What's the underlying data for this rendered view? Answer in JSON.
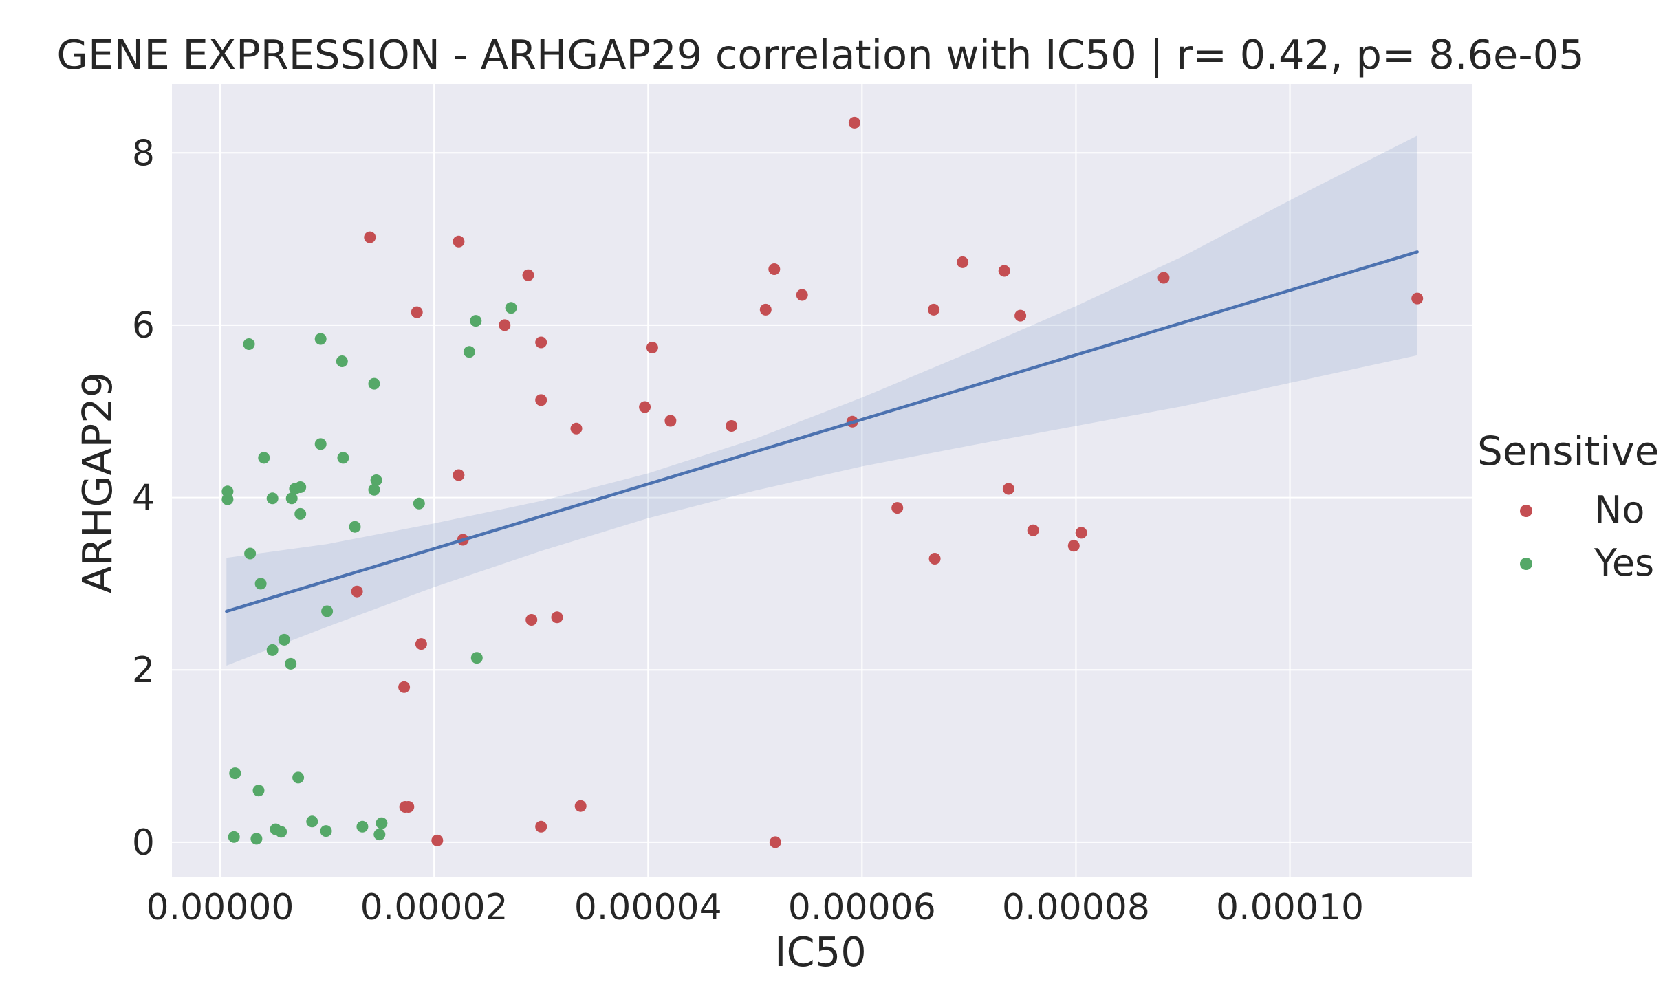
{
  "chart_data": {
    "type": "scatter",
    "title": "GENE EXPRESSION - ARHGAP29  correlation with IC50 | r= 0.42, p= 8.6e-05",
    "xlabel": "IC50",
    "ylabel": "ARHGAP29",
    "xlim": [
      -4.5e-06,
      0.000117
    ],
    "ylim": [
      -0.4,
      8.8
    ],
    "x_ticks": [
      0,
      2e-05,
      4e-05,
      6e-05,
      8e-05,
      0.0001
    ],
    "x_tick_labels": [
      "0.00000",
      "0.00002",
      "0.00004",
      "0.00006",
      "0.00008",
      "0.00010"
    ],
    "y_ticks": [
      0,
      2,
      4,
      6,
      8
    ],
    "y_tick_labels": [
      "0",
      "2",
      "4",
      "6",
      "8"
    ],
    "grid": true,
    "legend": {
      "title": "Sensitive",
      "placement": "right"
    },
    "colors": {
      "No": "#c44e52",
      "Yes": "#55a868",
      "regression": "#4c72b0",
      "band": "#4c72b0",
      "background": "#eaeaf2",
      "grid": "#ffffff"
    },
    "series": [
      {
        "name": "No",
        "points": [
          [
            5.93e-05,
            8.35
          ],
          [
            1.4e-05,
            7.02
          ],
          [
            2.23e-05,
            6.97
          ],
          [
            2.88e-05,
            6.58
          ],
          [
            5.18e-05,
            6.65
          ],
          [
            6.94e-05,
            6.73
          ],
          [
            7.33e-05,
            6.63
          ],
          [
            8.82e-05,
            6.55
          ],
          [
            0.0001119,
            6.31
          ],
          [
            5.44e-05,
            6.35
          ],
          [
            5.1e-05,
            6.18
          ],
          [
            6.67e-05,
            6.18
          ],
          [
            7.48e-05,
            6.11
          ],
          [
            1.84e-05,
            6.15
          ],
          [
            2.66e-05,
            6.0
          ],
          [
            3e-05,
            5.8
          ],
          [
            4.04e-05,
            5.74
          ],
          [
            3e-05,
            5.13
          ],
          [
            3.97e-05,
            5.05
          ],
          [
            4.21e-05,
            4.89
          ],
          [
            3.33e-05,
            4.8
          ],
          [
            4.78e-05,
            4.83
          ],
          [
            5.91e-05,
            4.88
          ],
          [
            2.23e-05,
            4.26
          ],
          [
            7.37e-05,
            4.1
          ],
          [
            6.33e-05,
            3.88
          ],
          [
            7.6e-05,
            3.62
          ],
          [
            8.05e-05,
            3.59
          ],
          [
            7.98e-05,
            3.44
          ],
          [
            2.27e-05,
            3.51
          ],
          [
            6.68e-05,
            3.29
          ],
          [
            1.28e-05,
            2.91
          ],
          [
            2.91e-05,
            2.58
          ],
          [
            3.15e-05,
            2.61
          ],
          [
            1.88e-05,
            2.3
          ],
          [
            1.72e-05,
            1.8
          ],
          [
            1.73e-05,
            0.41
          ],
          [
            1.76e-05,
            0.41
          ],
          [
            3.37e-05,
            0.42
          ],
          [
            3e-05,
            0.18
          ],
          [
            2.03e-05,
            0.02
          ],
          [
            5.19e-05,
            0.0
          ]
        ]
      },
      {
        "name": "Yes",
        "points": [
          [
            2.7e-06,
            5.78
          ],
          [
            9.4e-06,
            5.84
          ],
          [
            1.14e-05,
            5.58
          ],
          [
            1.44e-05,
            5.32
          ],
          [
            2.39e-05,
            6.05
          ],
          [
            2.72e-05,
            6.2
          ],
          [
            2.33e-05,
            5.69
          ],
          [
            4.1e-06,
            4.46
          ],
          [
            9.4e-06,
            4.62
          ],
          [
            1.15e-05,
            4.46
          ],
          [
            1.46e-05,
            4.2
          ],
          [
            1.44e-05,
            4.09
          ],
          [
            7e-07,
            4.07
          ],
          [
            7e-07,
            3.98
          ],
          [
            4.9e-06,
            3.99
          ],
          [
            6.7e-06,
            3.99
          ],
          [
            7e-06,
            4.1
          ],
          [
            7.5e-06,
            4.12
          ],
          [
            7.5e-06,
            3.81
          ],
          [
            1.86e-05,
            3.93
          ],
          [
            1.26e-05,
            3.66
          ],
          [
            2.8e-06,
            3.35
          ],
          [
            3.8e-06,
            3.0
          ],
          [
            1e-05,
            2.68
          ],
          [
            6e-06,
            2.35
          ],
          [
            4.9e-06,
            2.23
          ],
          [
            6.6e-06,
            2.07
          ],
          [
            2.4e-05,
            2.14
          ],
          [
            1.4e-06,
            0.8
          ],
          [
            7.3e-06,
            0.75
          ],
          [
            3.6e-06,
            0.6
          ],
          [
            1.3e-06,
            0.06
          ],
          [
            3.4e-06,
            0.04
          ],
          [
            5.2e-06,
            0.15
          ],
          [
            5.7e-06,
            0.12
          ],
          [
            8.6e-06,
            0.24
          ],
          [
            9.9e-06,
            0.13
          ],
          [
            1.33e-05,
            0.18
          ],
          [
            1.51e-05,
            0.22
          ],
          [
            1.49e-05,
            0.09
          ]
        ]
      }
    ],
    "regression": {
      "x": [
        6e-07,
        0.0001119
      ],
      "y": [
        2.68,
        6.85
      ],
      "ci_band": {
        "x": [
          6e-07,
          1e-05,
          2e-05,
          3e-05,
          4e-05,
          5e-05,
          6e-05,
          7e-05,
          8e-05,
          9e-05,
          0.0001,
          0.0001119
        ],
        "lower": [
          2.05,
          2.5,
          2.96,
          3.38,
          3.76,
          4.08,
          4.36,
          4.6,
          4.83,
          5.06,
          5.33,
          5.65
        ],
        "upper": [
          3.3,
          3.46,
          3.7,
          3.96,
          4.28,
          4.68,
          5.16,
          5.68,
          6.22,
          6.8,
          7.45,
          8.2
        ]
      }
    }
  }
}
